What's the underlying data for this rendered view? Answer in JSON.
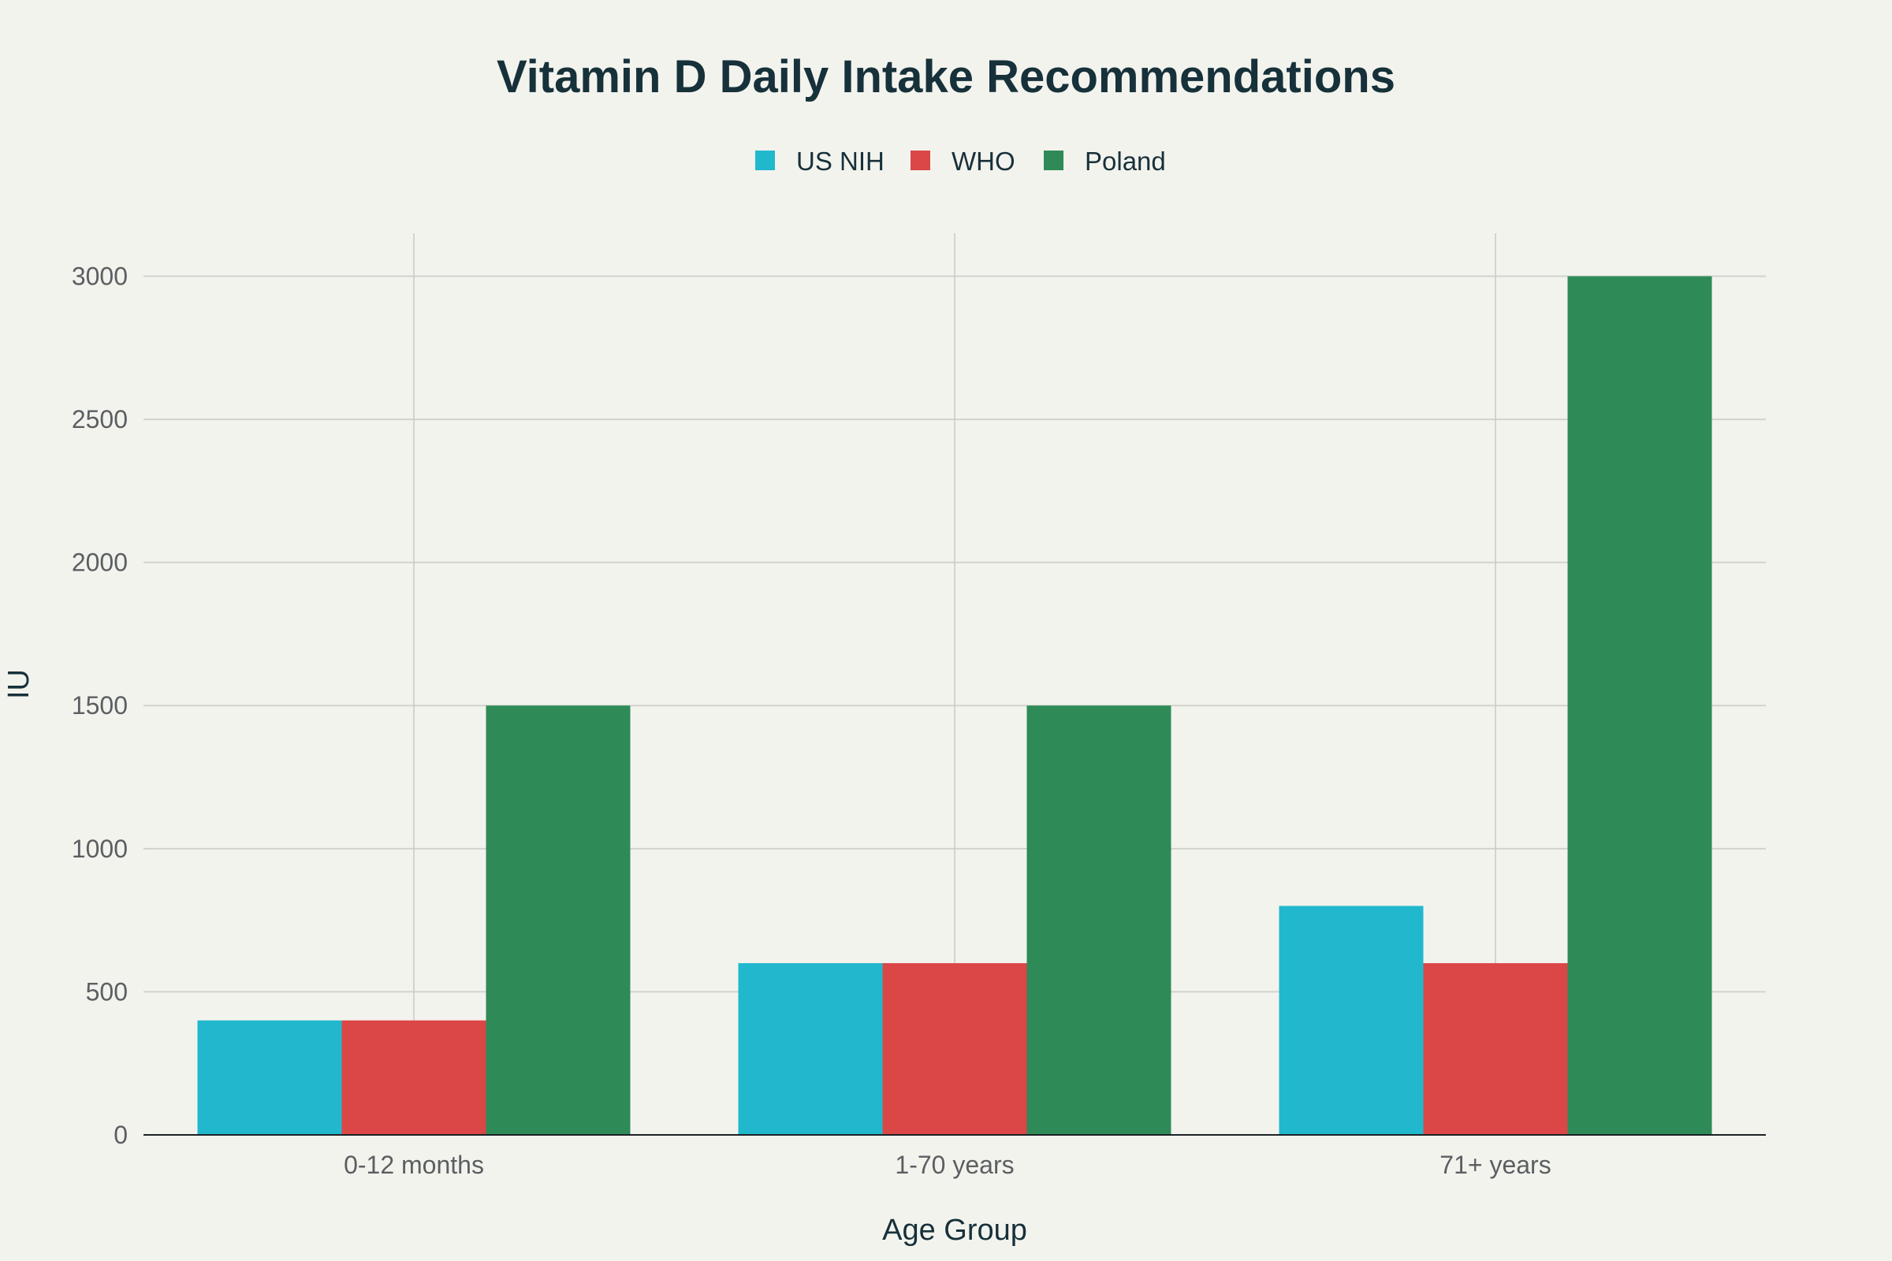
{
  "chart_data": {
    "type": "bar",
    "title": "Vitamin D Daily Intake Recommendations",
    "xlabel": "Age Group",
    "ylabel": "IU",
    "categories": [
      "0-12 months",
      "1-70 years",
      "71+ years"
    ],
    "series": [
      {
        "name": "US NIH",
        "color": "#21b8ce",
        "values": [
          400,
          600,
          800
        ]
      },
      {
        "name": "WHO",
        "color": "#db4647",
        "values": [
          400,
          600,
          600
        ]
      },
      {
        "name": "Poland",
        "color": "#2e8b57",
        "values": [
          1500,
          1500,
          3000
        ]
      }
    ],
    "ylim": [
      0,
      3150
    ],
    "yticks": [
      0,
      500,
      1000,
      1500,
      2000,
      2500,
      3000
    ],
    "ytick_labels": [
      "0",
      "500",
      "1000",
      "1500",
      "2000",
      "2500",
      "3000"
    ],
    "grid": true,
    "legend_position": "top-center, horizontal"
  }
}
